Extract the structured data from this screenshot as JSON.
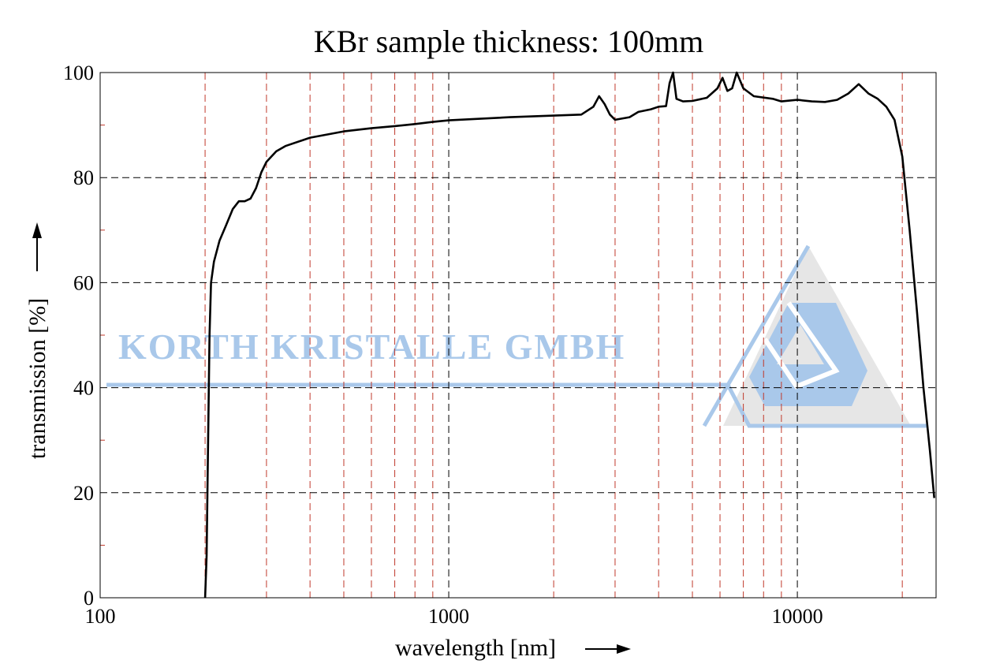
{
  "chart_data": {
    "type": "line",
    "title": "KBr sample thickness: 100mm",
    "xlabel": "wavelength [nm]",
    "ylabel": "transmission [%]",
    "x_scale": "log",
    "xlim": [
      100,
      25000
    ],
    "ylim": [
      0,
      100
    ],
    "x_ticks": [
      100,
      1000,
      10000
    ],
    "x_tick_labels": [
      "100",
      "1000",
      "10000"
    ],
    "y_ticks": [
      0,
      20,
      40,
      60,
      80,
      100
    ],
    "y_tick_labels": [
      "0",
      "20",
      "40",
      "60",
      "80",
      "100"
    ],
    "grid": true,
    "minor_grid_x": [
      200,
      300,
      400,
      500,
      600,
      700,
      800,
      900,
      2000,
      3000,
      4000,
      5000,
      6000,
      7000,
      8000,
      9000,
      20000
    ],
    "series": [
      {
        "color": "#000000",
        "points": [
          [
            200,
            0
          ],
          [
            202,
            8
          ],
          [
            204,
            30
          ],
          [
            206,
            50
          ],
          [
            208,
            60
          ],
          [
            212,
            64
          ],
          [
            220,
            68
          ],
          [
            230,
            71
          ],
          [
            240,
            74
          ],
          [
            250,
            75.5
          ],
          [
            260,
            75.5
          ],
          [
            270,
            76
          ],
          [
            280,
            78
          ],
          [
            290,
            81
          ],
          [
            300,
            83
          ],
          [
            320,
            85
          ],
          [
            340,
            86
          ],
          [
            400,
            87.6
          ],
          [
            500,
            88.8
          ],
          [
            600,
            89.4
          ],
          [
            700,
            89.8
          ],
          [
            800,
            90.2
          ],
          [
            900,
            90.6
          ],
          [
            1000,
            90.9
          ],
          [
            1500,
            91.5
          ],
          [
            2000,
            91.8
          ],
          [
            2400,
            92
          ],
          [
            2600,
            93.5
          ],
          [
            2700,
            95.5
          ],
          [
            2800,
            94
          ],
          [
            2900,
            92
          ],
          [
            3000,
            91
          ],
          [
            3300,
            91.5
          ],
          [
            3500,
            92.5
          ],
          [
            3800,
            93
          ],
          [
            4000,
            93.5
          ],
          [
            4200,
            93.6
          ],
          [
            4300,
            98
          ],
          [
            4400,
            100
          ],
          [
            4500,
            95
          ],
          [
            4700,
            94.5
          ],
          [
            5000,
            94.6
          ],
          [
            5500,
            95.2
          ],
          [
            5900,
            97
          ],
          [
            6100,
            99
          ],
          [
            6300,
            96.5
          ],
          [
            6500,
            97
          ],
          [
            6700,
            100
          ],
          [
            7000,
            97
          ],
          [
            7500,
            95.5
          ],
          [
            8500,
            95
          ],
          [
            9000,
            94.5
          ],
          [
            10000,
            94.8
          ],
          [
            11000,
            94.5
          ],
          [
            12000,
            94.4
          ],
          [
            13000,
            94.8
          ],
          [
            14000,
            96
          ],
          [
            15000,
            97.8
          ],
          [
            16000,
            96
          ],
          [
            17000,
            95
          ],
          [
            18000,
            93.5
          ],
          [
            19000,
            91
          ],
          [
            20000,
            84
          ],
          [
            21000,
            70
          ],
          [
            22000,
            55
          ],
          [
            23000,
            40
          ],
          [
            24000,
            28
          ],
          [
            24700,
            19
          ]
        ]
      }
    ]
  },
  "watermark": {
    "text": "KORTH KRISTALLE GMBH",
    "color": "#a9c8ea"
  },
  "colors": {
    "major_grid": "#000000",
    "minor_grid": "#c0392b",
    "axis": "#000000",
    "logo_fill": "#e6e6e6"
  },
  "arrow_icon": "right-arrow / up-arrow"
}
